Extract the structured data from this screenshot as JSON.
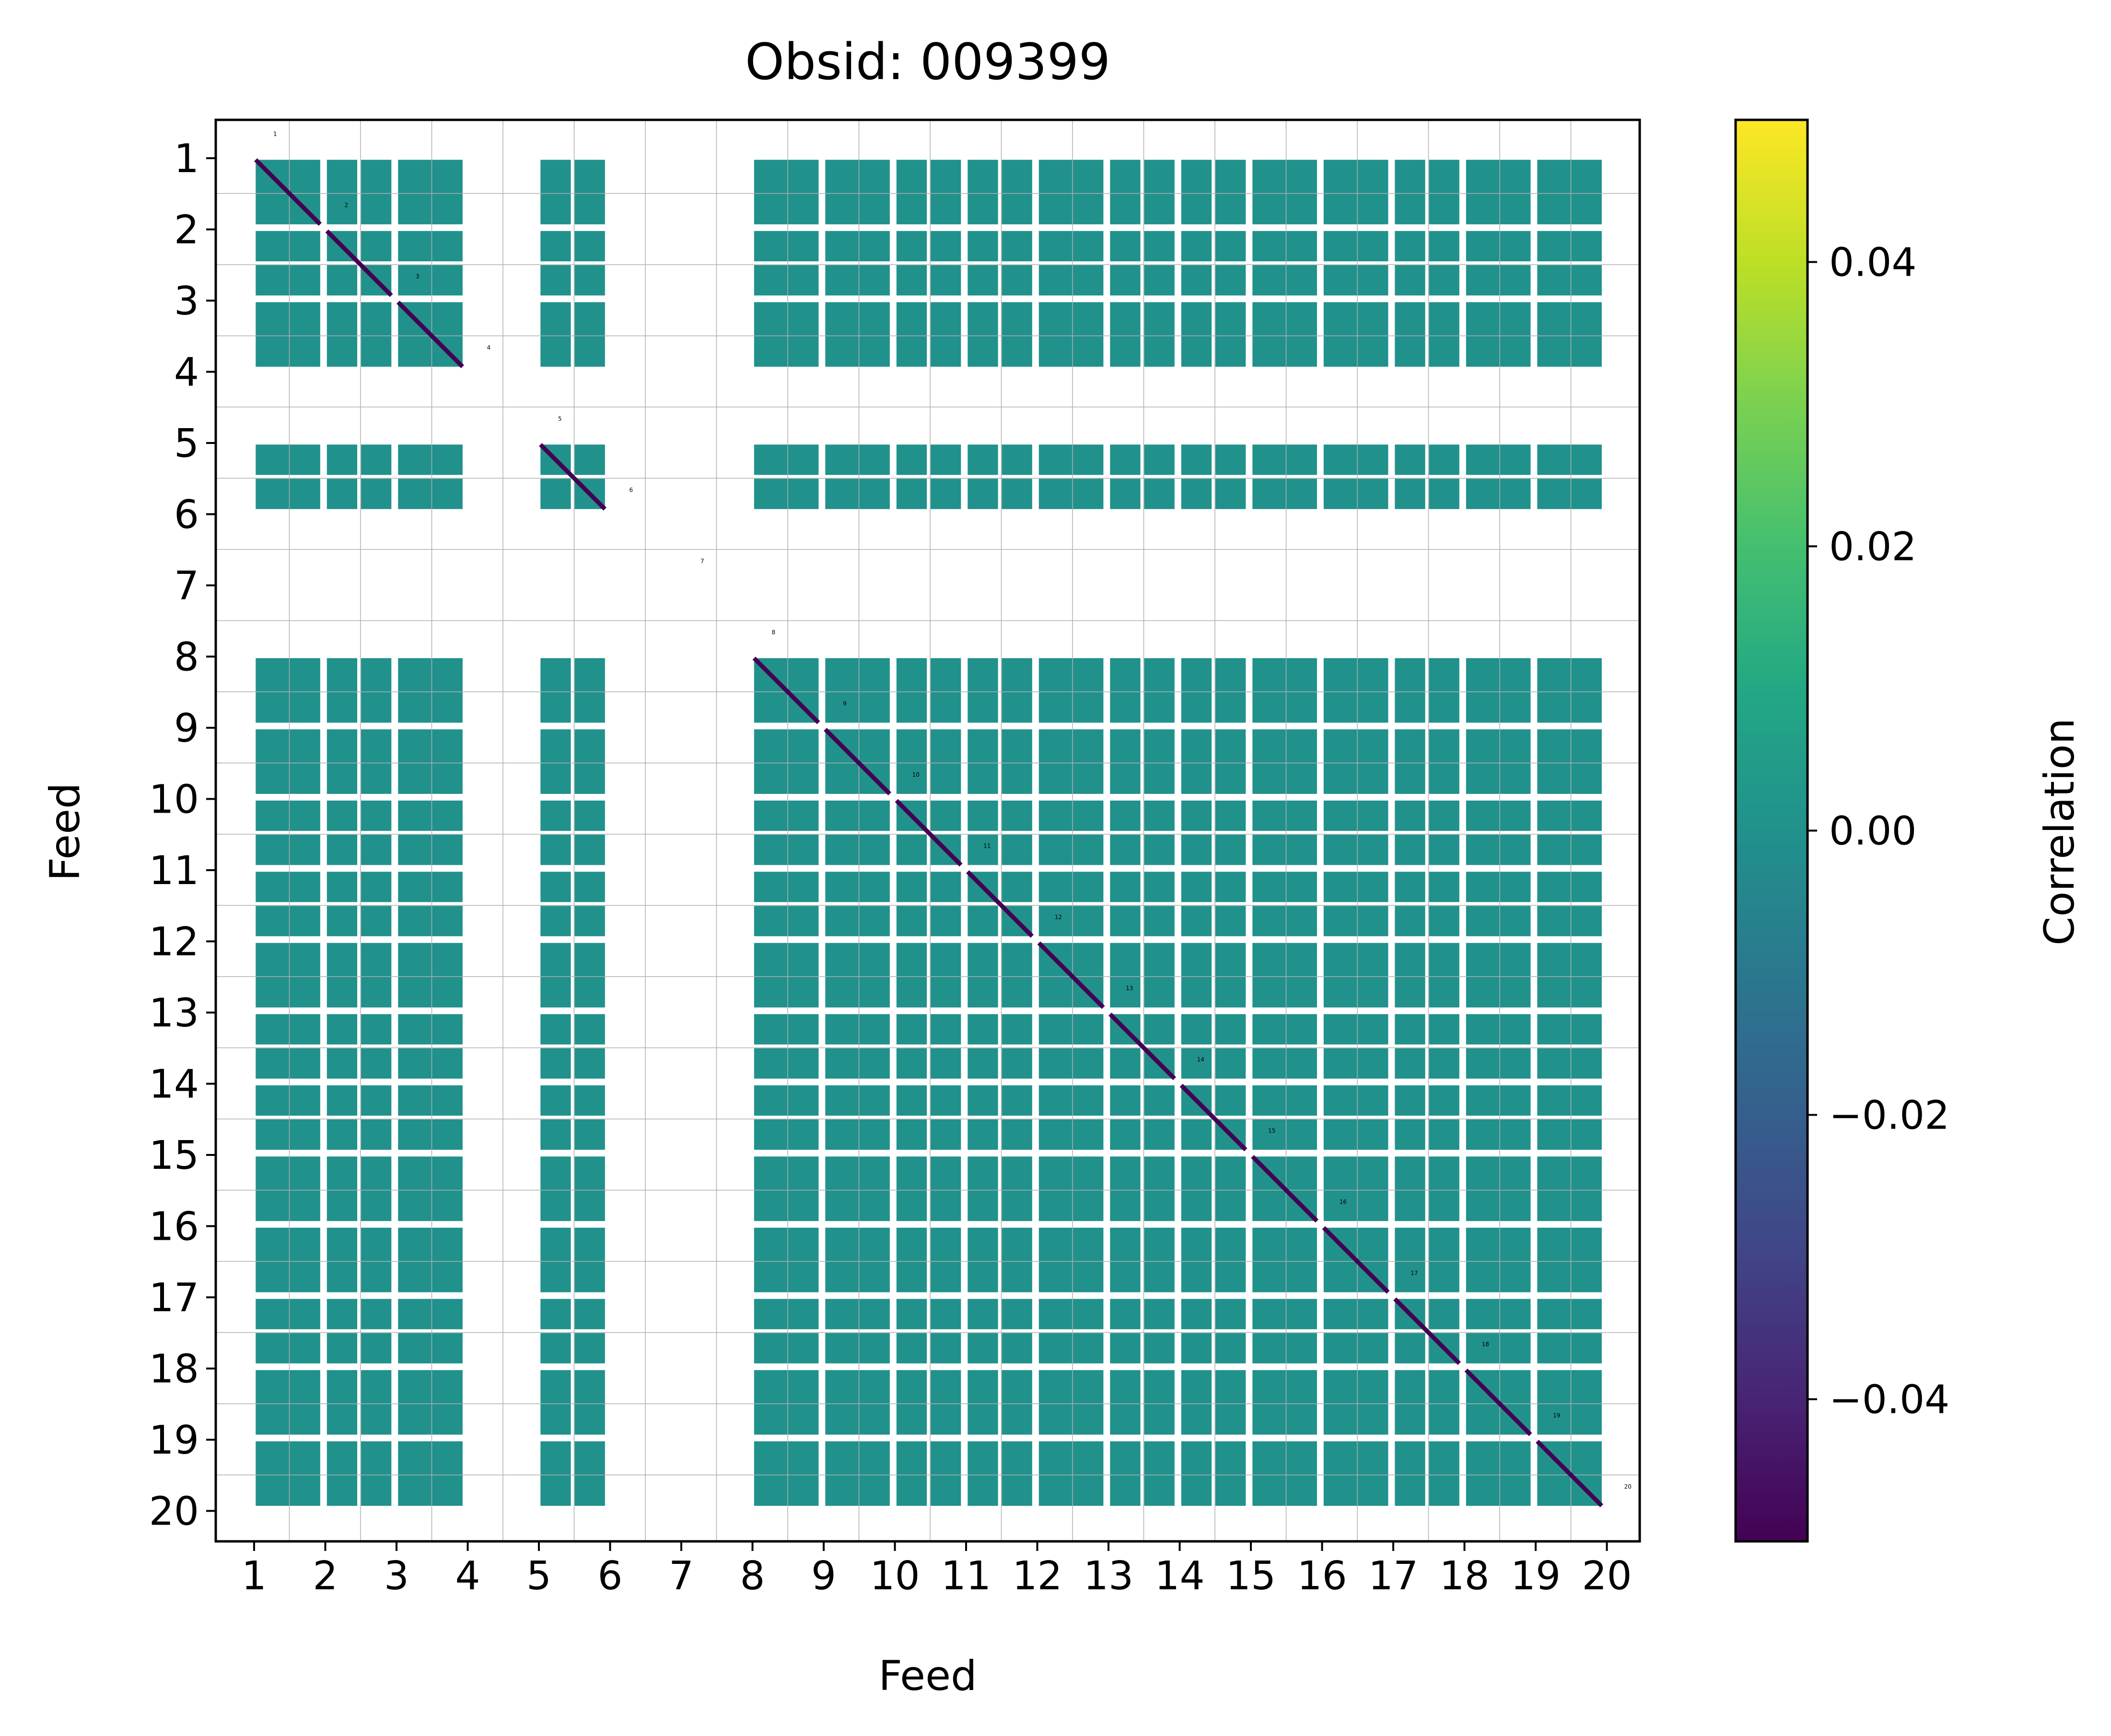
{
  "chart_data": {
    "type": "heatmap",
    "title": "Obsid: 009399",
    "xlabel": "Feed",
    "ylabel": "Feed",
    "x_ticks": [
      "1",
      "2",
      "3",
      "4",
      "5",
      "6",
      "7",
      "8",
      "9",
      "10",
      "11",
      "12",
      "13",
      "14",
      "15",
      "16",
      "17",
      "18",
      "19",
      "20"
    ],
    "y_ticks": [
      "1",
      "2",
      "3",
      "4",
      "5",
      "6",
      "7",
      "8",
      "9",
      "10",
      "11",
      "12",
      "13",
      "14",
      "15",
      "16",
      "17",
      "18",
      "19",
      "20"
    ],
    "feed_tags": [
      "1",
      "2",
      "3",
      "4",
      "5",
      "6",
      "7",
      "8",
      "9",
      "10",
      "11",
      "12",
      "13",
      "14",
      "15",
      "16",
      "17",
      "18",
      "19",
      "20"
    ],
    "active_feeds": [
      1,
      2,
      3,
      5,
      8,
      9,
      10,
      11,
      12,
      13,
      14,
      15,
      16,
      17,
      18,
      19
    ],
    "inactive_feeds": [
      4,
      6,
      7,
      20
    ],
    "blocks_per_feed": {
      "1": 1,
      "2": 2,
      "3": 1,
      "5": 2,
      "8": 1,
      "9": 1,
      "10": 2,
      "11": 2,
      "12": 1,
      "13": 2,
      "14": 2,
      "15": 1,
      "16": 1,
      "17": 2,
      "18": 1,
      "19": 1
    },
    "uniform_value": 0.0,
    "diagonal_value": -0.05,
    "colorbar": {
      "label": "Correlation",
      "colormap": "viridis",
      "range": [
        -0.05,
        0.05
      ],
      "ticks": [
        -0.04,
        -0.02,
        0.0,
        0.02,
        0.04
      ],
      "tick_labels": [
        "−0.04",
        "−0.02",
        "0.00",
        "0.02",
        "0.04"
      ]
    },
    "colors": {
      "uniform_cell": "#21918c",
      "diagonal": "#440154",
      "grid": "#b0b0b0"
    }
  }
}
